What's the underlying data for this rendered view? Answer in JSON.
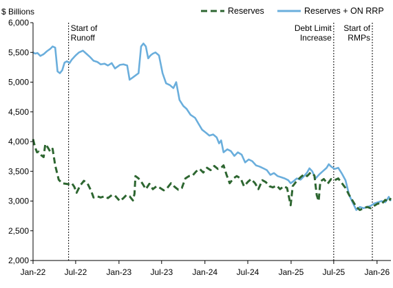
{
  "chart_data": {
    "type": "line",
    "unit_label": "$ Billions",
    "ylim": [
      2000,
      6000
    ],
    "y_ticks": [
      2000,
      2500,
      3000,
      3500,
      4000,
      4500,
      5000,
      5500,
      6000
    ],
    "y_tick_labels": [
      "2,000",
      "2,500",
      "3,000",
      "3,500",
      "4,000",
      "4,500",
      "5,000",
      "5,500",
      "6,000"
    ],
    "xlim": [
      "2022-01-01",
      "2026-03-01"
    ],
    "x_ticks": [
      "2022-01-01",
      "2022-07-01",
      "2023-01-01",
      "2023-07-01",
      "2024-01-01",
      "2024-07-01",
      "2025-01-01",
      "2025-07-01",
      "2026-01-01"
    ],
    "x_tick_labels": [
      "Jan-22",
      "Jul-22",
      "Jan-23",
      "Jul-23",
      "Jan-24",
      "Jul-24",
      "Jan-25",
      "Jul-25",
      "Jan-26"
    ],
    "grid": false,
    "legend_placement": "top-right",
    "colors": {
      "reserves": "#2d6630",
      "reserves_on_rrp": "#6aaedc"
    },
    "series": [
      {
        "name": "Reserves",
        "style": "dashed",
        "points": [
          [
            "2022-01-01",
            4040
          ],
          [
            "2022-01-10",
            3900
          ],
          [
            "2022-01-18",
            3820
          ],
          [
            "2022-01-25",
            3830
          ],
          [
            "2022-02-05",
            3770
          ],
          [
            "2022-02-15",
            3740
          ],
          [
            "2022-02-22",
            3960
          ],
          [
            "2022-03-05",
            3900
          ],
          [
            "2022-03-15",
            3830
          ],
          [
            "2022-03-25",
            3880
          ],
          [
            "2022-04-05",
            3600
          ],
          [
            "2022-04-20",
            3360
          ],
          [
            "2022-05-05",
            3300
          ],
          [
            "2022-05-20",
            3290
          ],
          [
            "2022-06-05",
            3280
          ],
          [
            "2022-06-15",
            3300
          ],
          [
            "2022-06-25",
            3240
          ],
          [
            "2022-07-05",
            3140
          ],
          [
            "2022-07-20",
            3260
          ],
          [
            "2022-08-05",
            3340
          ],
          [
            "2022-08-20",
            3300
          ],
          [
            "2022-09-05",
            3170
          ],
          [
            "2022-09-15",
            3060
          ],
          [
            "2022-10-01",
            3080
          ],
          [
            "2022-10-15",
            3060
          ],
          [
            "2022-11-01",
            3080
          ],
          [
            "2022-11-15",
            3050
          ],
          [
            "2022-12-01",
            3100
          ],
          [
            "2022-12-15",
            3090
          ],
          [
            "2023-01-05",
            3000
          ],
          [
            "2023-01-20",
            3050
          ],
          [
            "2023-02-01",
            3100
          ],
          [
            "2023-02-15",
            3080
          ],
          [
            "2023-03-01",
            3010
          ],
          [
            "2023-03-08",
            3120
          ],
          [
            "2023-03-12",
            3420
          ],
          [
            "2023-03-25",
            3380
          ],
          [
            "2023-04-10",
            3300
          ],
          [
            "2023-04-25",
            3200
          ],
          [
            "2023-05-10",
            3290
          ],
          [
            "2023-05-25",
            3200
          ],
          [
            "2023-06-10",
            3250
          ],
          [
            "2023-06-25",
            3220
          ],
          [
            "2023-07-10",
            3180
          ],
          [
            "2023-07-25",
            3220
          ],
          [
            "2023-08-10",
            3300
          ],
          [
            "2023-08-25",
            3240
          ],
          [
            "2023-09-10",
            3190
          ],
          [
            "2023-09-25",
            3220
          ],
          [
            "2023-10-10",
            3380
          ],
          [
            "2023-10-25",
            3420
          ],
          [
            "2023-11-10",
            3430
          ],
          [
            "2023-11-25",
            3500
          ],
          [
            "2023-12-10",
            3540
          ],
          [
            "2023-12-25",
            3480
          ],
          [
            "2024-01-10",
            3560
          ],
          [
            "2024-01-25",
            3520
          ],
          [
            "2024-02-10",
            3590
          ],
          [
            "2024-02-25",
            3540
          ],
          [
            "2024-03-10",
            3560
          ],
          [
            "2024-03-20",
            3600
          ],
          [
            "2024-04-01",
            3450
          ],
          [
            "2024-04-15",
            3300
          ],
          [
            "2024-05-01",
            3380
          ],
          [
            "2024-05-15",
            3420
          ],
          [
            "2024-06-01",
            3380
          ],
          [
            "2024-06-15",
            3250
          ],
          [
            "2024-07-01",
            3320
          ],
          [
            "2024-07-15",
            3370
          ],
          [
            "2024-08-01",
            3300
          ],
          [
            "2024-08-15",
            3200
          ],
          [
            "2024-09-01",
            3350
          ],
          [
            "2024-09-15",
            3320
          ],
          [
            "2024-10-01",
            3250
          ],
          [
            "2024-10-15",
            3230
          ],
          [
            "2024-11-01",
            3260
          ],
          [
            "2024-11-15",
            3200
          ],
          [
            "2024-12-01",
            3250
          ],
          [
            "2024-12-15",
            3220
          ],
          [
            "2024-12-30",
            2930
          ],
          [
            "2025-01-08",
            3250
          ],
          [
            "2025-01-25",
            3340
          ],
          [
            "2025-02-10",
            3400
          ],
          [
            "2025-02-25",
            3450
          ],
          [
            "2025-03-10",
            3420
          ],
          [
            "2025-03-25",
            3480
          ],
          [
            "2025-04-10",
            3430
          ],
          [
            "2025-04-20",
            3100
          ],
          [
            "2025-04-28",
            3000
          ],
          [
            "2025-05-05",
            3330
          ],
          [
            "2025-05-20",
            3370
          ],
          [
            "2025-06-05",
            3290
          ],
          [
            "2025-06-20",
            3370
          ],
          [
            "2025-07-05",
            3350
          ],
          [
            "2025-07-20",
            3380
          ],
          [
            "2025-08-05",
            3300
          ],
          [
            "2025-08-20",
            3220
          ],
          [
            "2025-09-05",
            3100
          ],
          [
            "2025-09-20",
            3000
          ],
          [
            "2025-10-05",
            2900
          ],
          [
            "2025-10-20",
            2850
          ],
          [
            "2025-11-05",
            2880
          ],
          [
            "2025-11-20",
            2900
          ],
          [
            "2025-12-05",
            2880
          ],
          [
            "2025-12-20",
            2920
          ],
          [
            "2026-01-05",
            2960
          ],
          [
            "2026-01-20",
            2950
          ],
          [
            "2026-02-05",
            3020
          ],
          [
            "2026-02-20",
            2990
          ],
          [
            "2026-02-28",
            3050
          ]
        ]
      },
      {
        "name": "Reserves + ON RRP",
        "style": "solid",
        "points": [
          [
            "2022-01-01",
            5500
          ],
          [
            "2022-01-10",
            5480
          ],
          [
            "2022-01-20",
            5490
          ],
          [
            "2022-02-01",
            5440
          ],
          [
            "2022-02-15",
            5470
          ],
          [
            "2022-03-01",
            5520
          ],
          [
            "2022-03-15",
            5560
          ],
          [
            "2022-03-25",
            5600
          ],
          [
            "2022-04-05",
            5580
          ],
          [
            "2022-04-15",
            5180
          ],
          [
            "2022-04-25",
            5150
          ],
          [
            "2022-05-05",
            5200
          ],
          [
            "2022-05-15",
            5330
          ],
          [
            "2022-05-25",
            5350
          ],
          [
            "2022-06-05",
            5320
          ],
          [
            "2022-06-15",
            5380
          ],
          [
            "2022-07-01",
            5450
          ],
          [
            "2022-07-15",
            5500
          ],
          [
            "2022-08-01",
            5530
          ],
          [
            "2022-08-15",
            5480
          ],
          [
            "2022-09-01",
            5420
          ],
          [
            "2022-09-15",
            5360
          ],
          [
            "2022-10-01",
            5340
          ],
          [
            "2022-10-15",
            5300
          ],
          [
            "2022-11-01",
            5310
          ],
          [
            "2022-11-15",
            5280
          ],
          [
            "2022-12-01",
            5320
          ],
          [
            "2022-12-15",
            5230
          ],
          [
            "2023-01-05",
            5290
          ],
          [
            "2023-01-20",
            5300
          ],
          [
            "2023-02-05",
            5280
          ],
          [
            "2023-02-15",
            5040
          ],
          [
            "2023-03-01",
            5080
          ],
          [
            "2023-03-15",
            5120
          ],
          [
            "2023-03-25",
            5150
          ],
          [
            "2023-04-05",
            5600
          ],
          [
            "2023-04-15",
            5650
          ],
          [
            "2023-04-25",
            5600
          ],
          [
            "2023-05-05",
            5400
          ],
          [
            "2023-05-15",
            5450
          ],
          [
            "2023-05-25",
            5480
          ],
          [
            "2023-06-05",
            5500
          ],
          [
            "2023-06-20",
            5450
          ],
          [
            "2023-07-05",
            5150
          ],
          [
            "2023-07-20",
            4980
          ],
          [
            "2023-08-05",
            4950
          ],
          [
            "2023-08-20",
            4900
          ],
          [
            "2023-09-01",
            5000
          ],
          [
            "2023-09-15",
            4700
          ],
          [
            "2023-10-01",
            4600
          ],
          [
            "2023-10-15",
            4550
          ],
          [
            "2023-11-01",
            4450
          ],
          [
            "2023-11-20",
            4400
          ],
          [
            "2023-12-05",
            4300
          ],
          [
            "2023-12-20",
            4200
          ],
          [
            "2024-01-05",
            4150
          ],
          [
            "2024-01-20",
            4100
          ],
          [
            "2024-02-05",
            4120
          ],
          [
            "2024-02-20",
            4070
          ],
          [
            "2024-03-01",
            3970
          ],
          [
            "2024-03-10",
            4020
          ],
          [
            "2024-03-20",
            3820
          ],
          [
            "2024-04-05",
            3870
          ],
          [
            "2024-04-20",
            3840
          ],
          [
            "2024-05-05",
            3760
          ],
          [
            "2024-05-20",
            3820
          ],
          [
            "2024-06-05",
            3780
          ],
          [
            "2024-06-20",
            3650
          ],
          [
            "2024-07-05",
            3700
          ],
          [
            "2024-07-20",
            3670
          ],
          [
            "2024-08-05",
            3600
          ],
          [
            "2024-08-20",
            3580
          ],
          [
            "2024-09-05",
            3550
          ],
          [
            "2024-09-20",
            3520
          ],
          [
            "2024-10-05",
            3440
          ],
          [
            "2024-10-20",
            3470
          ],
          [
            "2024-11-05",
            3420
          ],
          [
            "2024-11-20",
            3400
          ],
          [
            "2024-12-05",
            3380
          ],
          [
            "2024-12-20",
            3350
          ],
          [
            "2024-12-30",
            3300
          ],
          [
            "2025-01-10",
            3330
          ],
          [
            "2025-01-25",
            3380
          ],
          [
            "2025-02-10",
            3360
          ],
          [
            "2025-02-25",
            3420
          ],
          [
            "2025-03-10",
            3480
          ],
          [
            "2025-03-20",
            3550
          ],
          [
            "2025-04-01",
            3500
          ],
          [
            "2025-04-15",
            3380
          ],
          [
            "2025-05-01",
            3450
          ],
          [
            "2025-05-15",
            3500
          ],
          [
            "2025-06-01",
            3560
          ],
          [
            "2025-06-10",
            3620
          ],
          [
            "2025-06-20",
            3580
          ],
          [
            "2025-07-05",
            3540
          ],
          [
            "2025-07-20",
            3560
          ],
          [
            "2025-08-05",
            3460
          ],
          [
            "2025-08-20",
            3350
          ],
          [
            "2025-09-05",
            3100
          ],
          [
            "2025-09-20",
            2970
          ],
          [
            "2025-10-05",
            2850
          ],
          [
            "2025-10-20",
            2900
          ],
          [
            "2025-11-05",
            2880
          ],
          [
            "2025-11-20",
            2900
          ],
          [
            "2025-12-05",
            2920
          ],
          [
            "2025-12-20",
            2960
          ],
          [
            "2026-01-05",
            2980
          ],
          [
            "2026-01-20",
            3000
          ],
          [
            "2026-02-05",
            2980
          ],
          [
            "2026-02-20",
            3070
          ],
          [
            "2026-02-28",
            3000
          ]
        ]
      }
    ],
    "annotations": [
      {
        "id": "start-of-runoff",
        "date": "2022-06-01",
        "lines": [
          "Start of",
          "Runoff"
        ],
        "text_side": "right"
      },
      {
        "id": "debt-limit-increase",
        "date": "2025-07-01",
        "lines": [
          "Debt Limit",
          "Increase"
        ],
        "text_side": "left"
      },
      {
        "id": "start-of-rmps",
        "date": "2025-12-12",
        "lines": [
          "Start of",
          "RMPs"
        ],
        "text_side": "left"
      }
    ]
  }
}
